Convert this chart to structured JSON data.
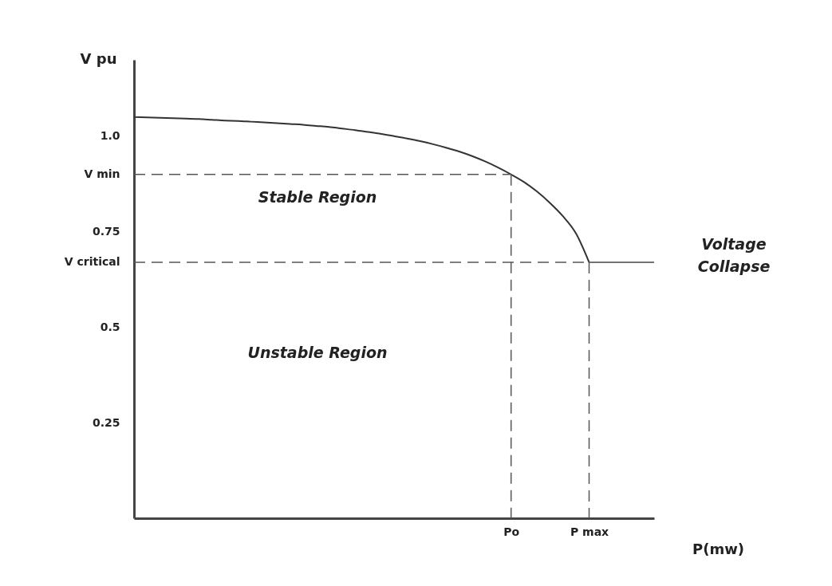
{
  "chart_data": {
    "type": "line",
    "xlabel": "P(mw)",
    "ylabel": "V pu",
    "categories": [
      null,
      null,
      null,
      null,
      null,
      null,
      null,
      null,
      null,
      null,
      null,
      null,
      null,
      null,
      null,
      null,
      null,
      null,
      null,
      null,
      null,
      null,
      null,
      null,
      null,
      null,
      null,
      null,
      null,
      "Po",
      null,
      null,
      null,
      null,
      null,
      "P max",
      null,
      null,
      null,
      null,
      null
    ],
    "ylim": [
      0,
      1.2
    ],
    "yticks": [
      0.25,
      0.5,
      {
        "value": 0.67,
        "label": "V critical"
      },
      0.75,
      {
        "value": 0.9,
        "label": "V min"
      },
      {
        "value": 1.0,
        "label": "1.0"
      }
    ],
    "series": [
      {
        "color": "#333333",
        "line_style": "solid",
        "values": [
          1.05,
          1.049,
          1.048,
          1.047,
          1.046,
          1.045,
          1.043,
          1.041,
          1.04,
          1.038,
          1.036,
          1.034,
          1.032,
          1.03,
          1.027,
          1.024,
          1.02,
          1.016,
          1.011,
          1.006,
          1.0,
          0.994,
          0.987,
          0.979,
          0.97,
          0.96,
          0.948,
          0.934,
          0.918,
          0.9,
          0.88,
          0.855,
          0.825,
          0.79,
          0.745,
          0.67,
          null,
          null,
          null,
          null,
          null
        ]
      },
      {
        "color": "#444444",
        "line_style": "solid",
        "values": [
          null,
          null,
          null,
          null,
          null,
          null,
          null,
          null,
          null,
          null,
          null,
          null,
          null,
          null,
          null,
          null,
          null,
          null,
          null,
          null,
          null,
          null,
          null,
          null,
          null,
          null,
          null,
          null,
          null,
          null,
          null,
          null,
          null,
          null,
          null,
          0.67,
          0.67,
          0.67,
          0.67,
          0.67,
          0.67
        ]
      },
      {
        "color": "#555555",
        "line_style": "dashed",
        "values": [
          0.9,
          0.9,
          0.9,
          0.9,
          0.9,
          0.9,
          0.9,
          0.9,
          0.9,
          0.9,
          0.9,
          0.9,
          0.9,
          0.9,
          0.9,
          0.9,
          0.9,
          0.9,
          0.9,
          0.9,
          0.9,
          0.9,
          0.9,
          0.9,
          0.9,
          0.9,
          0.9,
          0.9,
          0.9,
          0.9,
          null,
          null,
          null,
          null,
          null,
          null,
          null,
          null,
          null,
          null,
          null
        ]
      },
      {
        "color": "#555555",
        "line_style": "dashed",
        "x": [
          "Po",
          "Po"
        ],
        "values": [
          0.9,
          0
        ]
      },
      {
        "color": "#555555",
        "line_style": "dashed",
        "values": [
          0.67,
          0.67,
          0.67,
          0.67,
          0.67,
          0.67,
          0.67,
          0.67,
          0.67,
          0.67,
          0.67,
          0.67,
          0.67,
          0.67,
          0.67,
          0.67,
          0.67,
          0.67,
          0.67,
          0.67,
          0.67,
          0.67,
          0.67,
          0.67,
          0.67,
          0.67,
          0.67,
          0.67,
          0.67,
          0.67,
          0.67,
          0.67,
          0.67,
          0.67,
          0.67,
          0.67,
          null,
          null,
          null,
          null,
          null
        ]
      },
      {
        "color": "#555555",
        "line_style": "dashed",
        "x": [
          "P max",
          "P max"
        ],
        "values": [
          0.67,
          0
        ]
      }
    ],
    "annotations": [
      "Stable Region",
      "Unstable Region",
      "Voltage Collapse"
    ]
  }
}
